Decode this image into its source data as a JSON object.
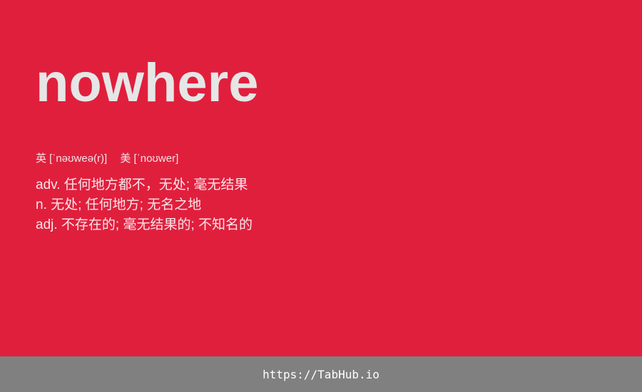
{
  "word": "nowhere",
  "phonetics": [
    "英 [ˈnəʊweə(r)]",
    "美 [ˈnoʊwer]"
  ],
  "definitions": [
    "adv. 任何地方都不，无处; 毫无结果",
    "n. 无处; 任何地方; 无名之地",
    "adj. 不存在的; 毫无结果的; 不知名的"
  ],
  "footer": {
    "url": "https://TabHub.io"
  },
  "colors": {
    "background": "#e01f3d",
    "word": "#e6e6e6",
    "footer_background": "#808080"
  }
}
